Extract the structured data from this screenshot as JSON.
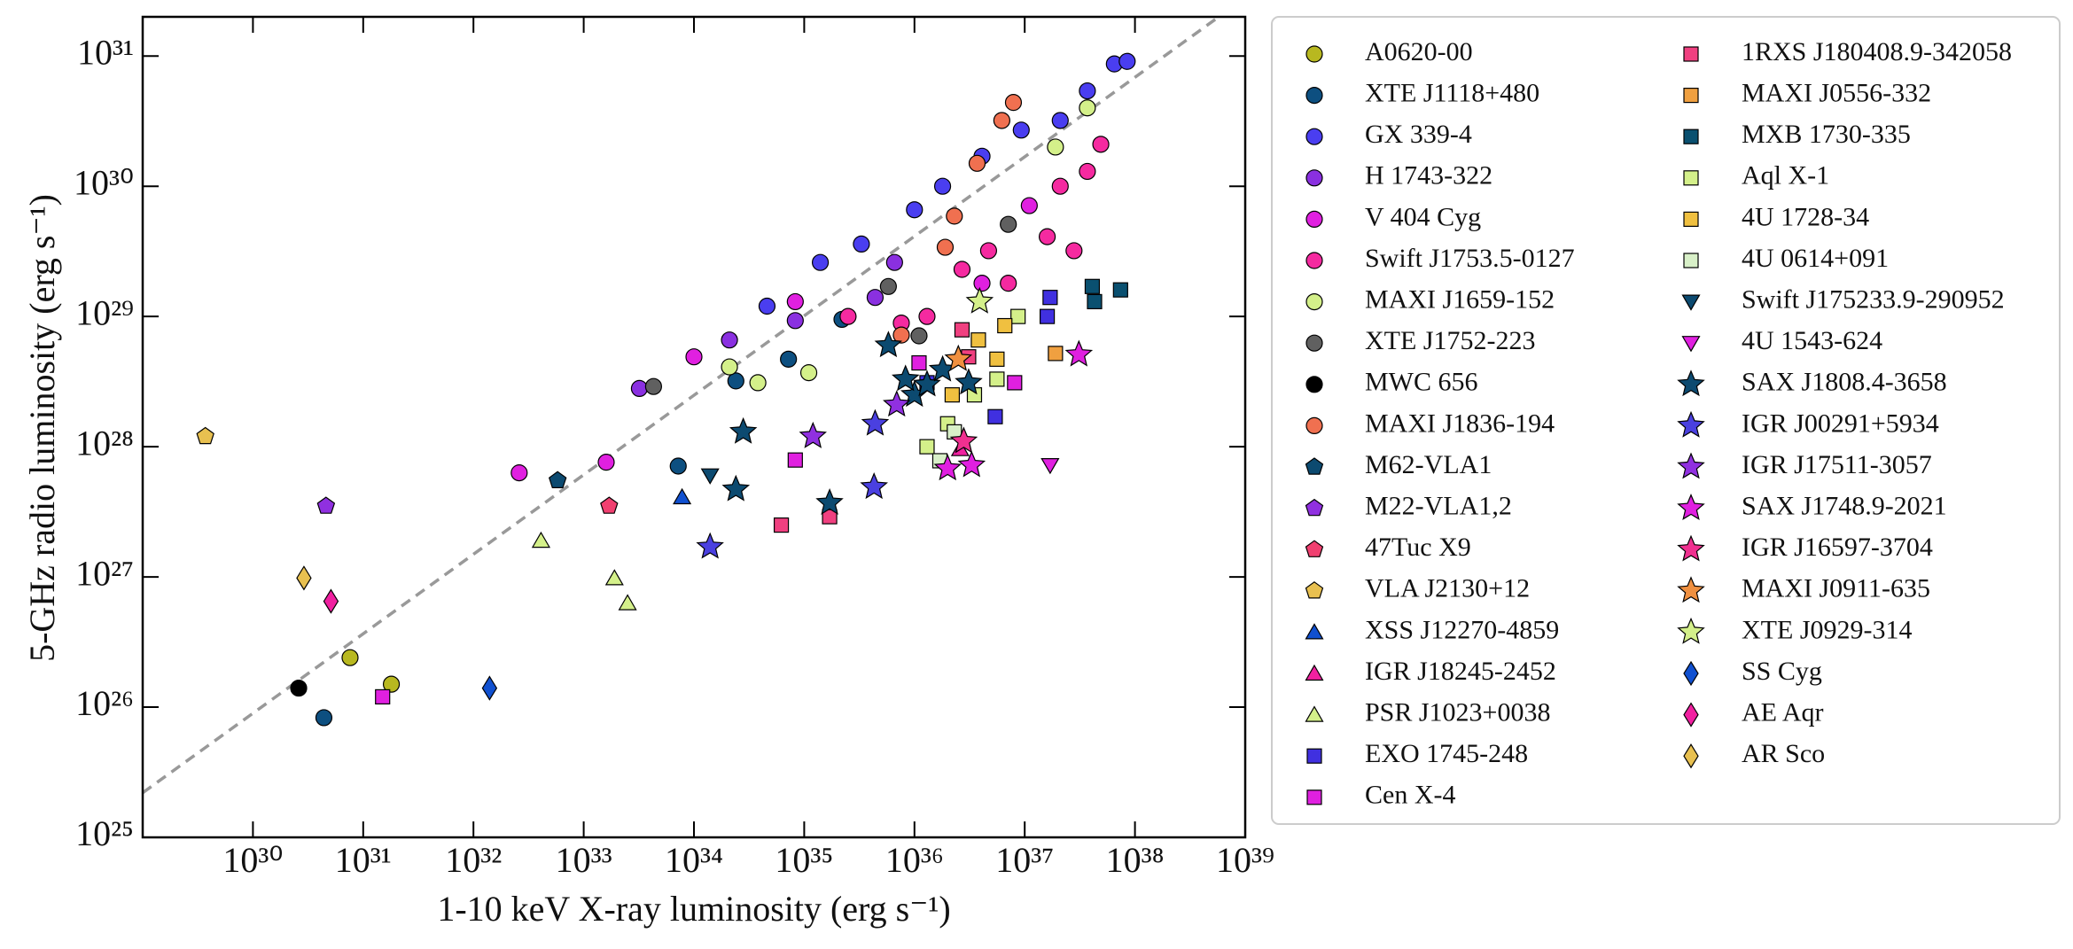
{
  "chart_data": {
    "type": "scatter",
    "xlabel": "1-10 keV X-ray luminosity (erg s⁻¹)",
    "ylabel": "5-GHz radio luminosity (erg s⁻¹)",
    "xscale": "log",
    "yscale": "log",
    "xlim": [
      1e+29,
      1e+39
    ],
    "ylim": [
      1e+25,
      2e+31
    ],
    "xticks": [
      {
        "value": 1e+30,
        "label": "10³⁰"
      },
      {
        "value": 1e+31,
        "label": "10³¹"
      },
      {
        "value": 1e+32,
        "label": "10³²"
      },
      {
        "value": 1e+33,
        "label": "10³³"
      },
      {
        "value": 1e+34,
        "label": "10³⁴"
      },
      {
        "value": 1e+35,
        "label": "10³⁵"
      },
      {
        "value": 1e+36,
        "label": "10³⁶"
      },
      {
        "value": 1e+37,
        "label": "10³⁷"
      },
      {
        "value": 1e+38,
        "label": "10³⁸"
      },
      {
        "value": 1e+39,
        "label": "10³⁹"
      }
    ],
    "yticks": [
      {
        "value": 1e+25,
        "label": "10²⁵"
      },
      {
        "value": 1e+26,
        "label": "10²⁶"
      },
      {
        "value": 1e+27,
        "label": "10²⁷"
      },
      {
        "value": 1e+28,
        "label": "10²⁸"
      },
      {
        "value": 1e+29,
        "label": "10²⁹"
      },
      {
        "value": 1e+30,
        "label": "10³⁰"
      },
      {
        "value": 1e+31,
        "label": "10³¹"
      }
    ],
    "reference_line": {
      "x": [
        1e+29,
        1e+39
      ],
      "y": [
        2.2e+25,
        2.8e+31
      ],
      "color": "#999999",
      "style": "dashed"
    },
    "legend": "right-outside",
    "legend_columns": 2,
    "series": [
      {
        "name": "A0620-00",
        "color": "#b8b820",
        "marker": "circle",
        "x": [
          7.6e+30,
          1.8e+31
        ],
        "y": [
          2.4e+26,
          1.5e+26
        ]
      },
      {
        "name": "XTE J1118+480",
        "color": "#0d4f80",
        "marker": "circle",
        "x": [
          4.4e+30,
          7.2e+33,
          2.4e+34,
          7.2e+34,
          2.2e+35
        ],
        "y": [
          8.3e+25,
          7.1e+27,
          3.2e+28,
          4.7e+28,
          9.5e+28
        ]
      },
      {
        "name": "GX 339-4",
        "color": "#4a3ef0",
        "marker": "circle",
        "x": [
          4.6e+34,
          1.4e+35,
          3.3e+35,
          1e+36,
          1.8e+36,
          4.1e+36,
          9.3e+36,
          2.1e+37,
          3.7e+37,
          6.5e+37,
          8.5e+37
        ],
        "y": [
          1.2e+29,
          2.6e+29,
          3.6e+29,
          6.6e+29,
          1e+30,
          1.7e+30,
          2.7e+30,
          3.2e+30,
          5.4e+30,
          8.7e+30,
          9.1e+30
        ]
      },
      {
        "name": "H 1743-322",
        "color": "#8a30e0",
        "marker": "circle",
        "x": [
          3.2e+33,
          2.1e+34,
          8.3e+34,
          4.4e+35,
          6.6e+35
        ],
        "y": [
          2.8e+28,
          6.6e+28,
          9.3e+28,
          1.4e+29,
          2.6e+29
        ]
      },
      {
        "name": "V 404 Cyg",
        "color": "#e020e0",
        "marker": "circle",
        "x": [
          2.6e+32,
          1.6e+33,
          1e+34,
          8.3e+34,
          4.1e+36,
          1.1e+37
        ],
        "y": [
          6.3e+27,
          7.6e+27,
          4.9e+28,
          1.3e+29,
          1.8e+29,
          7.1e+29
        ]
      },
      {
        "name": "Swift J1753.5-0127",
        "color": "#f52aa0",
        "marker": "circle",
        "x": [
          2.7e+36,
          4.7e+36,
          7.1e+36,
          2.1e+37,
          3.7e+37,
          4.9e+37,
          2.8e+37,
          1.3e+36,
          7.6e+35,
          2.5e+35,
          1.6e+37
        ],
        "y": [
          2.3e+29,
          3.2e+29,
          1.8e+29,
          1e+30,
          1.3e+30,
          2.1e+30,
          3.2e+29,
          1e+29,
          8.9e+28,
          1e+29,
          4.1e+29
        ]
      },
      {
        "name": "MAXI J1659-152",
        "color": "#d4f08a",
        "marker": "circle",
        "x": [
          2.1e+34,
          3.8e+34,
          1.1e+35,
          1.9e+37,
          3.7e+37
        ],
        "y": [
          4.1e+28,
          3.1e+28,
          3.7e+28,
          2e+30,
          4e+30
        ]
      },
      {
        "name": "XTE J1752-223",
        "color": "#606060",
        "marker": "circle",
        "x": [
          4.3e+33,
          5.8e+35,
          1.1e+36,
          7.1e+36
        ],
        "y": [
          2.9e+28,
          1.7e+29,
          7.1e+28,
          5.1e+29
        ]
      },
      {
        "name": "MWC 656",
        "color": "#000000",
        "marker": "circle",
        "x": [
          2.6e+30
        ],
        "y": [
          1.4e+26
        ]
      },
      {
        "name": "MAXI J1836-194",
        "color": "#f07050",
        "marker": "circle",
        "x": [
          7.6e+35,
          1.9e+36,
          3.7e+36,
          6.2e+36,
          7.9e+36,
          2.3e+36
        ],
        "y": [
          7.2e+28,
          3.4e+29,
          1.5e+30,
          3.2e+30,
          4.4e+30,
          5.9e+29
        ]
      },
      {
        "name": "M62-VLA1",
        "color": "#0c4a70",
        "marker": "pentagon",
        "x": [
          5.8e+32
        ],
        "y": [
          5.5e+27
        ]
      },
      {
        "name": "M22-VLA1,2",
        "color": "#9030e0",
        "marker": "pentagon",
        "x": [
          4.6e+30
        ],
        "y": [
          3.5e+27
        ]
      },
      {
        "name": "47Tuc X9",
        "color": "#f04070",
        "marker": "pentagon",
        "x": [
          1.7e+33
        ],
        "y": [
          3.5e+27
        ]
      },
      {
        "name": "VLA J2130+12",
        "color": "#e8c050",
        "marker": "pentagon",
        "x": [
          3.7e+29
        ],
        "y": [
          1.2e+28
        ]
      },
      {
        "name": "XSS J12270-4859",
        "color": "#1050d0",
        "marker": "triangle",
        "x": [
          7.8e+33
        ],
        "y": [
          4.1e+27
        ]
      },
      {
        "name": "IGR J18245-2452",
        "color": "#f020a0",
        "marker": "triangle",
        "x": [
          2.6e+36
        ],
        "y": [
          9.6e+27
        ]
      },
      {
        "name": "PSR J1023+0038",
        "color": "#d4f08a",
        "marker": "triangle",
        "x": [
          4.1e+32,
          1.9e+33,
          2.5e+33
        ],
        "y": [
          1.9e+27,
          9.8e+26,
          6.3e+26
        ]
      },
      {
        "name": "EXO 1745-248",
        "color": "#4030e0",
        "marker": "square",
        "x": [
          1.7e+37,
          5.4e+36,
          1.3e+36,
          1.6e+37
        ],
        "y": [
          1.4e+29,
          1.7e+28,
          3.1e+28,
          1e+29
        ]
      },
      {
        "name": "Cen X-4",
        "color": "#e020e0",
        "marker": "square",
        "x": [
          1.5e+31,
          8.3e+34,
          1.1e+36,
          8.1e+36
        ],
        "y": [
          1.2e+26,
          7.9e+27,
          4.4e+28,
          3.1e+28
        ]
      },
      {
        "name": "1RXS J180408.9-342058",
        "color": "#f04080",
        "marker": "square",
        "x": [
          6.2e+34,
          1.7e+35,
          3.1e+36,
          2.7e+36
        ],
        "y": [
          2.5e+27,
          2.9e+27,
          4.9e+28,
          7.9e+28
        ]
      },
      {
        "name": "MAXI J0556-332",
        "color": "#f0a040",
        "marker": "square",
        "x": [
          1.9e+37
        ],
        "y": [
          5.2e+28
        ]
      },
      {
        "name": "MXB 1730-335",
        "color": "#0a5070",
        "marker": "square",
        "x": [
          4.1e+37,
          4.3e+37,
          7.4e+37
        ],
        "y": [
          1.7e+29,
          1.3e+29,
          1.6e+29
        ]
      },
      {
        "name": "Aql X-1",
        "color": "#d4f08a",
        "marker": "square",
        "x": [
          1.3e+36,
          2e+36,
          3.5e+36,
          5.6e+36,
          8.7e+36
        ],
        "y": [
          1e+28,
          1.5e+28,
          2.5e+28,
          3.3e+28,
          1e+29
        ]
      },
      {
        "name": "4U 1728-34",
        "color": "#f0c040",
        "marker": "square",
        "x": [
          6.6e+36,
          3.8e+36,
          5.6e+36,
          2.2e+36
        ],
        "y": [
          8.5e+28,
          6.6e+28,
          4.7e+28,
          2.5e+28
        ]
      },
      {
        "name": "4U 0614+091",
        "color": "#d8f0c8",
        "marker": "square",
        "x": [
          1.7e+36,
          2.3e+36
        ],
        "y": [
          7.8e+27,
          1.3e+28
        ]
      },
      {
        "name": "Swift J175233.9-290952",
        "color": "#0c4a70",
        "marker": "triangle-down",
        "x": [
          1.4e+34
        ],
        "y": [
          6e+27
        ]
      },
      {
        "name": "4U 1543-624",
        "color": "#e020e0",
        "marker": "triangle-down",
        "x": [
          1.7e+37
        ],
        "y": [
          7.2e+27
        ]
      },
      {
        "name": "SAX J1808.4-3658",
        "color": "#0c4a70",
        "marker": "star",
        "x": [
          2.8e+34,
          2.4e+34,
          1.7e+35,
          5.8e+35,
          1e+36,
          1.3e+36,
          1.8e+36,
          3.1e+36,
          8.3e+35
        ],
        "y": [
          1.3e+28,
          4.7e+27,
          3.7e+27,
          6e+28,
          2.5e+28,
          3e+28,
          3.9e+28,
          3.1e+28,
          3.3e+28
        ]
      },
      {
        "name": "IGR J00291+5934",
        "color": "#4a40e0",
        "marker": "star",
        "x": [
          1.4e+34,
          4.3e+35,
          4.4e+35
        ],
        "y": [
          1.7e+27,
          4.9e+27,
          1.5e+28
        ]
      },
      {
        "name": "IGR J17511-3057",
        "color": "#9030e0",
        "marker": "star",
        "x": [
          1.2e+35,
          6.9e+35
        ],
        "y": [
          1.2e+28,
          2.1e+28
        ]
      },
      {
        "name": "SAX J1748.9-2021",
        "color": "#e020e0",
        "marker": "star",
        "x": [
          3.3e+36,
          2e+36,
          3.1e+37
        ],
        "y": [
          7.2e+27,
          6.8e+27,
          5.1e+28
        ]
      },
      {
        "name": "IGR J16597-3704",
        "color": "#f03090",
        "marker": "star",
        "x": [
          2.8e+36
        ],
        "y": [
          1.1e+28
        ]
      },
      {
        "name": "MAXI J0911-635",
        "color": "#f09040",
        "marker": "star",
        "x": [
          2.5e+36
        ],
        "y": [
          4.7e+28
        ]
      },
      {
        "name": "XTE J0929-314",
        "color": "#d4f08a",
        "marker": "star",
        "x": [
          3.9e+36
        ],
        "y": [
          1.3e+29
        ]
      },
      {
        "name": "SS Cyg",
        "color": "#1050d0",
        "marker": "diamond",
        "x": [
          1.4e+32
        ],
        "y": [
          1.4e+26
        ]
      },
      {
        "name": "AE Aqr",
        "color": "#f020a0",
        "marker": "diamond",
        "x": [
          5.1e+30
        ],
        "y": [
          6.5e+26
        ]
      },
      {
        "name": "AR Sco",
        "color": "#e8c050",
        "marker": "diamond",
        "x": [
          2.9e+30
        ],
        "y": [
          9.8e+26
        ]
      }
    ]
  }
}
